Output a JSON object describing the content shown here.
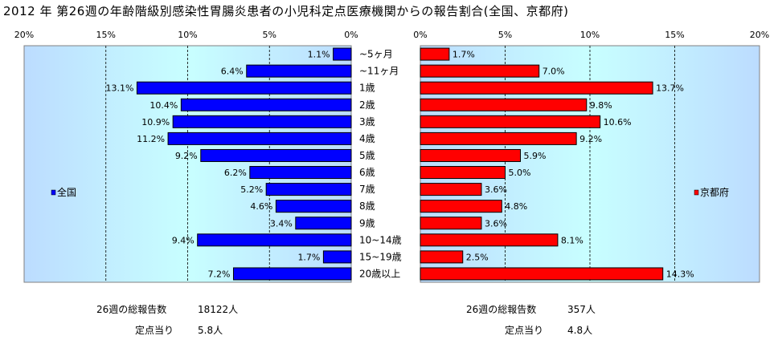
{
  "title": "2012 年 第26週の年齢階級別感染性胃腸炎患者の小児科定点医療機関からの報告割合(全国、京都府)",
  "chart_data": {
    "type": "bar",
    "orientation": "horizontal",
    "categories": [
      "~5ヶ月",
      "~11ヶ月",
      "1歳",
      "2歳",
      "3歳",
      "4歳",
      "5歳",
      "6歳",
      "7歳",
      "8歳",
      "9歳",
      "10~14歳",
      "15~19歳",
      "20歳以上"
    ],
    "xlim": [
      0,
      20
    ],
    "grid": true,
    "series": [
      {
        "name": "全国",
        "color": "#0000ff",
        "values": [
          1.1,
          6.4,
          13.1,
          10.4,
          10.9,
          11.2,
          9.2,
          6.2,
          5.2,
          4.6,
          3.4,
          9.4,
          1.7,
          7.2
        ],
        "labels": [
          "1.1%",
          "6.4%",
          "13.1%",
          "10.4%",
          "10.9%",
          "11.2%",
          "9.2%",
          "6.2%",
          "5.2%",
          "4.6%",
          "3.4%",
          "9.4%",
          "1.7%",
          "7.2%"
        ],
        "ticks": [
          "20%",
          "15%",
          "10%",
          "5%",
          "0%"
        ],
        "legend_placement": "left"
      },
      {
        "name": "京都府",
        "color": "#ff0000",
        "values": [
          1.7,
          7.0,
          13.7,
          9.8,
          10.6,
          9.2,
          5.9,
          5.0,
          3.6,
          4.8,
          3.6,
          8.1,
          2.5,
          14.3
        ],
        "labels": [
          "1.7%",
          "7.0%",
          "13.7%",
          "9.8%",
          "10.6%",
          "9.2%",
          "5.9%",
          "5.0%",
          "3.6%",
          "4.8%",
          "3.6%",
          "8.1%",
          "2.5%",
          "14.3%"
        ],
        "ticks": [
          "0%",
          "5%",
          "10%",
          "15%",
          "20%"
        ],
        "legend_placement": "right"
      }
    ]
  },
  "stats": {
    "national": {
      "total_label": "26週の総報告数",
      "total_value": "18122人",
      "per_label": "定点当り",
      "per_value": "5.8人"
    },
    "kyoto": {
      "total_label": "26週の総報告数",
      "total_value": "357人",
      "per_label": "定点当り",
      "per_value": "4.8人"
    }
  }
}
